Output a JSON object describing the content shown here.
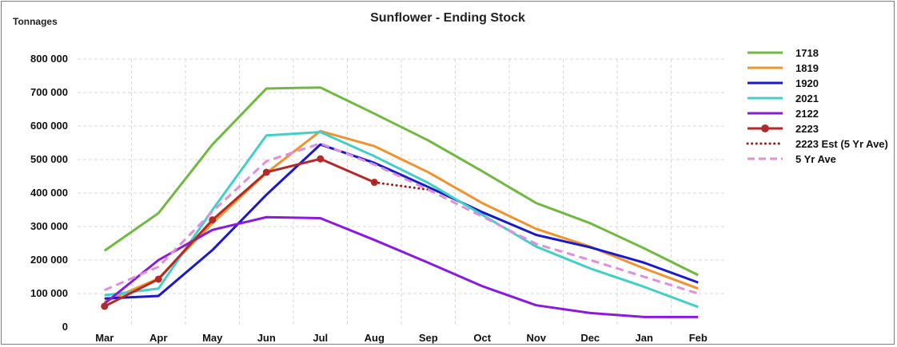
{
  "chart_data": {
    "type": "line",
    "title": "Sunflower - Ending Stock",
    "ylabel": "Tonnages",
    "xlabel": "",
    "categories": [
      "Mar",
      "Apr",
      "May",
      "Jun",
      "Jul",
      "Aug",
      "Sep",
      "Oct",
      "Nov",
      "Dec",
      "Jan",
      "Feb"
    ],
    "ylim": [
      0,
      800000
    ],
    "yticks": [
      0,
      100000,
      200000,
      300000,
      400000,
      500000,
      600000,
      700000,
      800000
    ],
    "ytick_labels": [
      "0",
      "100 000",
      "200 000",
      "300 000",
      "400 000",
      "500 000",
      "600 000",
      "700 000",
      "800 000"
    ],
    "grid": true,
    "legend_position": "right",
    "series": [
      {
        "name": "1718",
        "color": "#70b940",
        "style": "solid",
        "marker": "none",
        "values": [
          228000,
          340000,
          545000,
          712000,
          715000,
          637000,
          557000,
          465000,
          370000,
          310000,
          235000,
          155000
        ]
      },
      {
        "name": "1819",
        "color": "#f0922e",
        "style": "solid",
        "marker": "none",
        "values": [
          75000,
          145000,
          310000,
          460000,
          585000,
          540000,
          462000,
          370000,
          293000,
          240000,
          175000,
          115000
        ]
      },
      {
        "name": "1920",
        "color": "#1a1acd",
        "style": "solid",
        "marker": "none",
        "values": [
          85000,
          93000,
          230000,
          395000,
          545000,
          490000,
          418000,
          343000,
          275000,
          238000,
          192000,
          133000
        ]
      },
      {
        "name": "2021",
        "color": "#40d0c8",
        "style": "solid",
        "marker": "none",
        "values": [
          95000,
          115000,
          350000,
          572000,
          582000,
          510000,
          430000,
          335000,
          240000,
          175000,
          120000,
          60000
        ]
      },
      {
        "name": "2122",
        "color": "#8b1ae0",
        "style": "solid",
        "marker": "none",
        "values": [
          70000,
          200000,
          290000,
          328000,
          325000,
          260000,
          192000,
          122000,
          65000,
          42000,
          30000,
          30000
        ]
      },
      {
        "name": "2223",
        "color": "#b22a2a",
        "style": "solid",
        "marker": "circle",
        "values": [
          62000,
          143000,
          320000,
          462000,
          502000,
          432000,
          null,
          null,
          null,
          null,
          null,
          null
        ]
      },
      {
        "name": "2223 Est (5 Yr Ave)",
        "color": "#a01818",
        "style": "dotted",
        "marker": "none",
        "values": [
          null,
          null,
          null,
          null,
          null,
          432000,
          410000,
          null,
          null,
          null,
          null,
          null
        ]
      },
      {
        "name": "5 Yr Ave",
        "color": "#e08fdc",
        "style": "dashed",
        "marker": "none",
        "values": [
          110000,
          180000,
          345000,
          495000,
          548000,
          485000,
          410000,
          330000,
          248000,
          200000,
          150000,
          100000
        ]
      }
    ]
  }
}
